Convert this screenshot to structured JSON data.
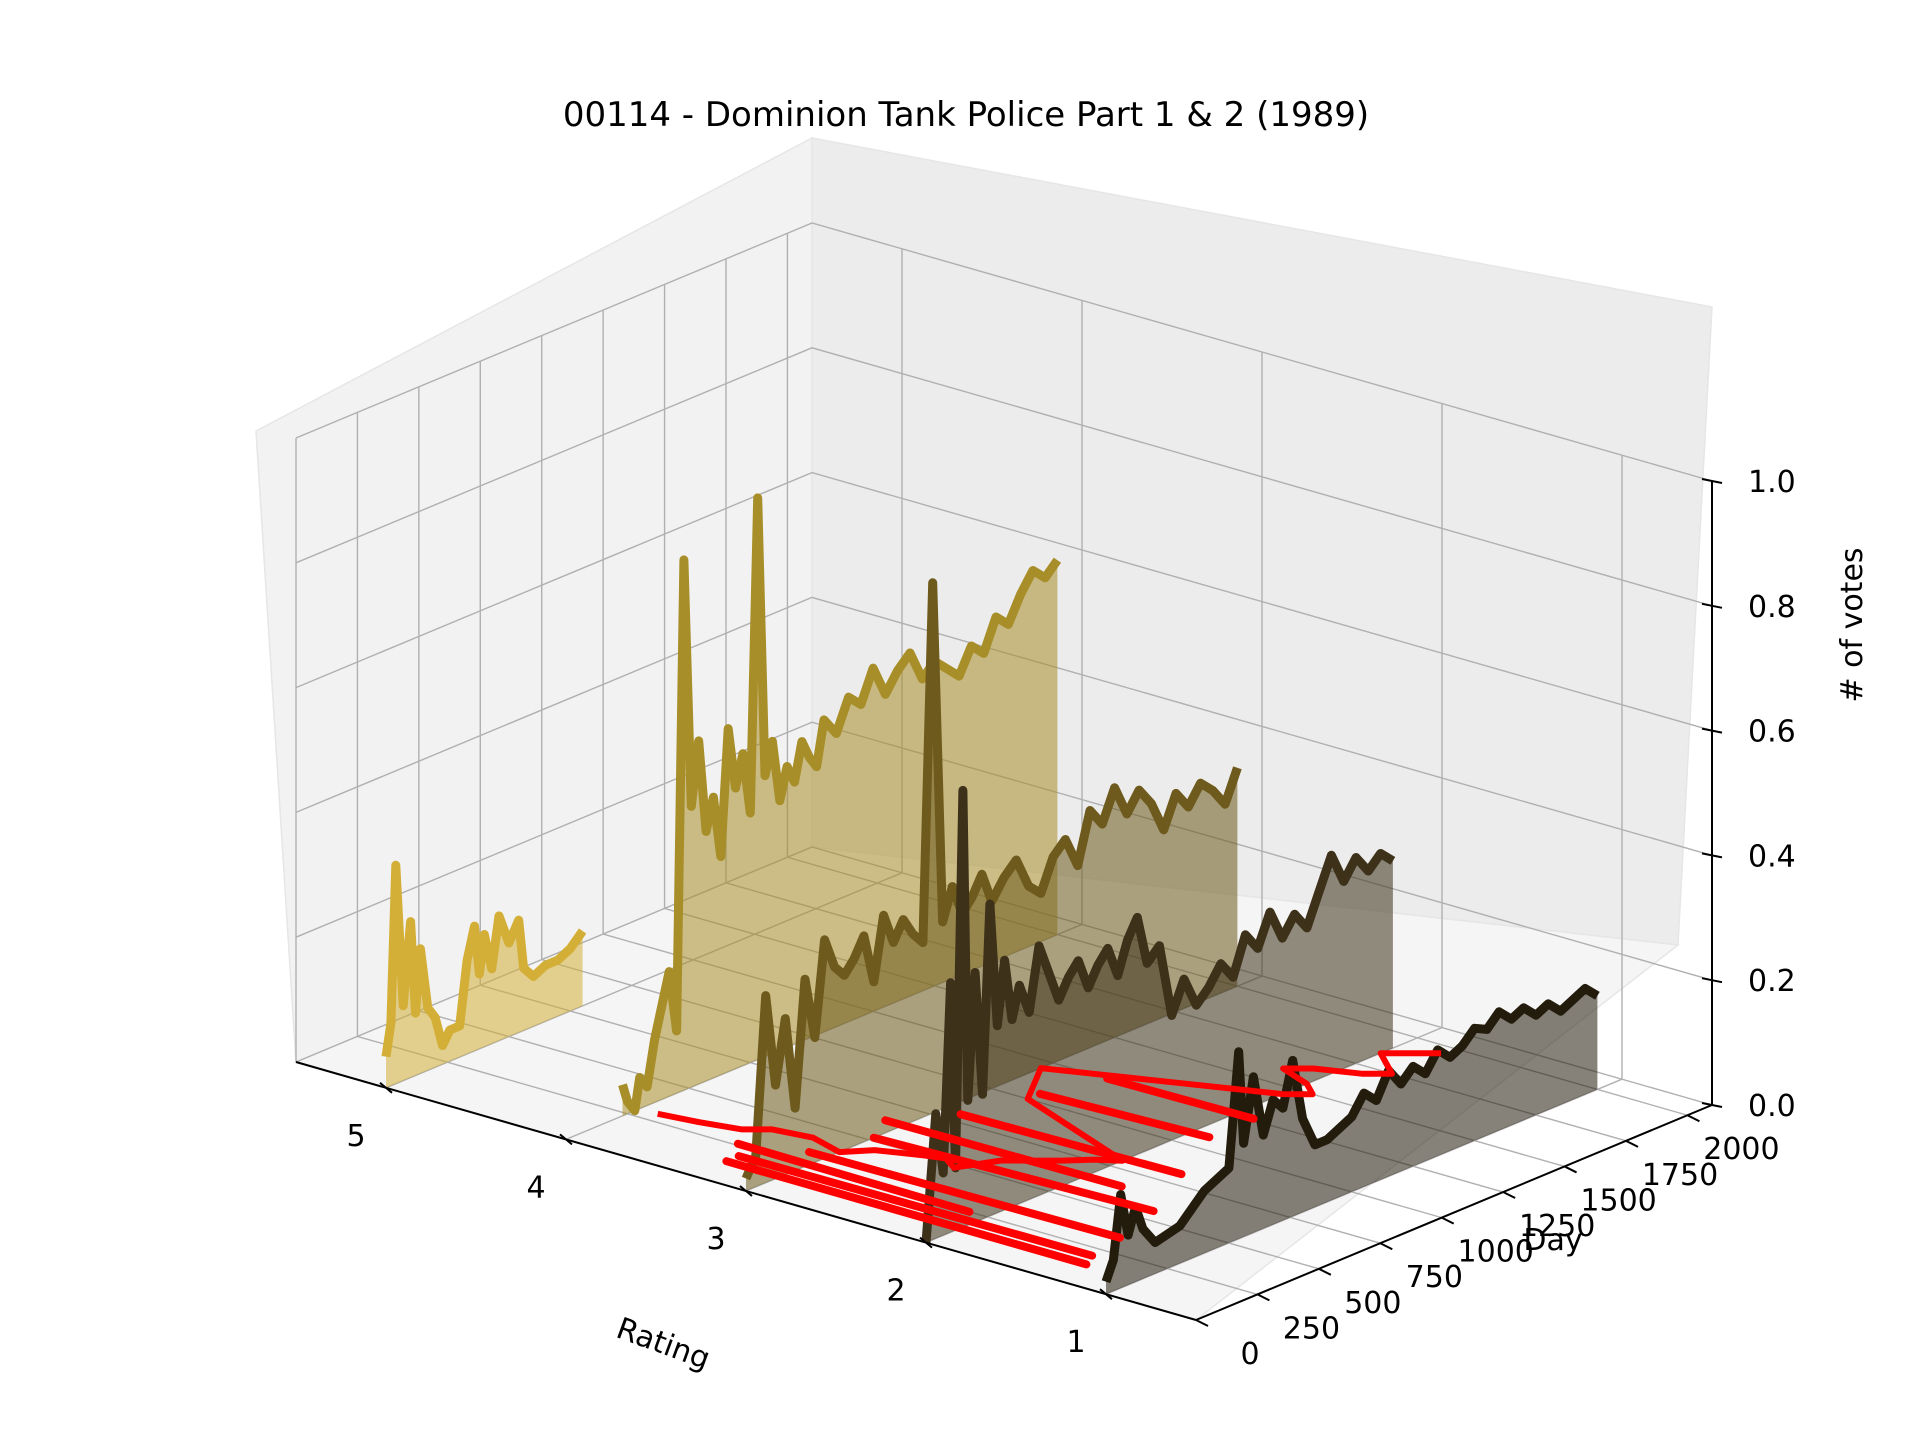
{
  "chart_data": {
    "type": "line",
    "projection": "3d",
    "title": "00114 - Dominion Tank Police Part 1 & 2 (1989)",
    "xlabel": "Rating",
    "ylabel": "Day",
    "zlabel": "# of votes",
    "x_ticks": [
      "5",
      "4",
      "3",
      "2",
      "1"
    ],
    "y_ticks": [
      "0",
      "250",
      "500",
      "750",
      "1000",
      "1250",
      "1500",
      "1750",
      "2000"
    ],
    "z_ticks": [
      "0.0",
      "0.2",
      "0.4",
      "0.6",
      "0.8",
      "1.0"
    ],
    "xlim": [
      0.5,
      5.5
    ],
    "ylim": [
      0,
      2100
    ],
    "zlim": [
      0,
      1
    ],
    "grid": true,
    "series": [
      {
        "rating": 5,
        "color": "#d4af37",
        "points": [
          [
            0,
            0.05
          ],
          [
            20,
            0.1
          ],
          [
            40,
            0.35
          ],
          [
            70,
            0.12
          ],
          [
            100,
            0.25
          ],
          [
            120,
            0.1
          ],
          [
            140,
            0.2
          ],
          [
            170,
            0.1
          ],
          [
            200,
            0.08
          ],
          [
            230,
            0.03
          ],
          [
            260,
            0.05
          ],
          [
            300,
            0.05
          ],
          [
            330,
            0.15
          ],
          [
            360,
            0.2
          ],
          [
            380,
            0.12
          ],
          [
            400,
            0.18
          ],
          [
            430,
            0.12
          ],
          [
            460,
            0.2
          ],
          [
            500,
            0.15
          ],
          [
            540,
            0.18
          ],
          [
            560,
            0.1
          ],
          [
            600,
            0.08
          ],
          [
            650,
            0.09
          ],
          [
            700,
            0.09
          ],
          [
            750,
            0.1
          ],
          [
            800,
            0.12
          ]
        ]
      },
      {
        "rating": 4,
        "color": "#a88e28",
        "points": [
          [
            230,
            0.05
          ],
          [
            250,
            0.02
          ],
          [
            280,
            0.0
          ],
          [
            300,
            0.05
          ],
          [
            330,
            0.03
          ],
          [
            360,
            0.1
          ],
          [
            390,
            0.15
          ],
          [
            420,
            0.2
          ],
          [
            450,
            0.1
          ],
          [
            480,
            0.85
          ],
          [
            510,
            0.45
          ],
          [
            540,
            0.55
          ],
          [
            570,
            0.4
          ],
          [
            600,
            0.45
          ],
          [
            630,
            0.35
          ],
          [
            660,
            0.55
          ],
          [
            690,
            0.45
          ],
          [
            720,
            0.5
          ],
          [
            750,
            0.4
          ],
          [
            780,
            0.9
          ],
          [
            810,
            0.45
          ],
          [
            840,
            0.5
          ],
          [
            870,
            0.4
          ],
          [
            900,
            0.45
          ],
          [
            930,
            0.42
          ],
          [
            960,
            0.48
          ],
          [
            990,
            0.45
          ],
          [
            1020,
            0.43
          ],
          [
            1050,
            0.5
          ],
          [
            1100,
            0.47
          ],
          [
            1150,
            0.52
          ],
          [
            1200,
            0.5
          ],
          [
            1250,
            0.55
          ],
          [
            1300,
            0.5
          ],
          [
            1350,
            0.53
          ],
          [
            1400,
            0.55
          ],
          [
            1450,
            0.5
          ],
          [
            1500,
            0.52
          ],
          [
            1550,
            0.5
          ],
          [
            1600,
            0.48
          ],
          [
            1650,
            0.52
          ],
          [
            1700,
            0.5
          ],
          [
            1750,
            0.55
          ],
          [
            1800,
            0.53
          ],
          [
            1850,
            0.57
          ],
          [
            1900,
            0.6
          ],
          [
            1950,
            0.58
          ],
          [
            2000,
            0.6
          ]
        ]
      },
      {
        "rating": 3,
        "color": "#6e5a1c",
        "points": [
          [
            0,
            0.02
          ],
          [
            40,
            0.05
          ],
          [
            80,
            0.3
          ],
          [
            120,
            0.15
          ],
          [
            160,
            0.25
          ],
          [
            200,
            0.1
          ],
          [
            240,
            0.3
          ],
          [
            280,
            0.2
          ],
          [
            320,
            0.35
          ],
          [
            360,
            0.3
          ],
          [
            400,
            0.28
          ],
          [
            440,
            0.3
          ],
          [
            480,
            0.33
          ],
          [
            520,
            0.25
          ],
          [
            560,
            0.35
          ],
          [
            600,
            0.3
          ],
          [
            640,
            0.33
          ],
          [
            680,
            0.3
          ],
          [
            720,
            0.28
          ],
          [
            760,
            0.85
          ],
          [
            800,
            0.3
          ],
          [
            840,
            0.35
          ],
          [
            880,
            0.3
          ],
          [
            920,
            0.32
          ],
          [
            960,
            0.35
          ],
          [
            1000,
            0.3
          ],
          [
            1050,
            0.33
          ],
          [
            1100,
            0.35
          ],
          [
            1150,
            0.3
          ],
          [
            1200,
            0.28
          ],
          [
            1250,
            0.33
          ],
          [
            1300,
            0.35
          ],
          [
            1350,
            0.3
          ],
          [
            1400,
            0.38
          ],
          [
            1450,
            0.35
          ],
          [
            1500,
            0.4
          ],
          [
            1550,
            0.35
          ],
          [
            1600,
            0.38
          ],
          [
            1650,
            0.35
          ],
          [
            1700,
            0.3
          ],
          [
            1750,
            0.35
          ],
          [
            1800,
            0.32
          ],
          [
            1850,
            0.35
          ],
          [
            1900,
            0.33
          ],
          [
            1950,
            0.3
          ],
          [
            2000,
            0.35
          ]
        ]
      },
      {
        "rating": 2,
        "color": "#3d311a",
        "points": [
          [
            0,
            0.0
          ],
          [
            40,
            0.2
          ],
          [
            70,
            0.1
          ],
          [
            100,
            0.4
          ],
          [
            120,
            0.1
          ],
          [
            150,
            0.7
          ],
          [
            170,
            0.2
          ],
          [
            200,
            0.4
          ],
          [
            230,
            0.2
          ],
          [
            260,
            0.5
          ],
          [
            290,
            0.3
          ],
          [
            320,
            0.4
          ],
          [
            350,
            0.3
          ],
          [
            380,
            0.35
          ],
          [
            420,
            0.3
          ],
          [
            460,
            0.4
          ],
          [
            500,
            0.35
          ],
          [
            540,
            0.3
          ],
          [
            580,
            0.33
          ],
          [
            620,
            0.35
          ],
          [
            660,
            0.3
          ],
          [
            700,
            0.33
          ],
          [
            740,
            0.35
          ],
          [
            780,
            0.3
          ],
          [
            820,
            0.35
          ],
          [
            860,
            0.38
          ],
          [
            900,
            0.3
          ],
          [
            950,
            0.32
          ],
          [
            1000,
            0.2
          ],
          [
            1050,
            0.25
          ],
          [
            1100,
            0.2
          ],
          [
            1150,
            0.22
          ],
          [
            1200,
            0.25
          ],
          [
            1250,
            0.22
          ],
          [
            1300,
            0.28
          ],
          [
            1350,
            0.25
          ],
          [
            1400,
            0.3
          ],
          [
            1450,
            0.25
          ],
          [
            1500,
            0.28
          ],
          [
            1550,
            0.25
          ],
          [
            1600,
            0.3
          ],
          [
            1650,
            0.35
          ],
          [
            1700,
            0.3
          ],
          [
            1750,
            0.33
          ],
          [
            1800,
            0.3
          ],
          [
            1850,
            0.32
          ],
          [
            1900,
            0.3
          ]
        ]
      },
      {
        "rating": 1,
        "color": "#231c0d",
        "points": [
          [
            0,
            0.02
          ],
          [
            30,
            0.05
          ],
          [
            60,
            0.15
          ],
          [
            90,
            0.08
          ],
          [
            120,
            0.12
          ],
          [
            150,
            0.08
          ],
          [
            200,
            0.05
          ],
          [
            300,
            0.06
          ],
          [
            400,
            0.1
          ],
          [
            500,
            0.12
          ],
          [
            540,
            0.3
          ],
          [
            560,
            0.15
          ],
          [
            600,
            0.25
          ],
          [
            640,
            0.15
          ],
          [
            680,
            0.2
          ],
          [
            720,
            0.18
          ],
          [
            760,
            0.25
          ],
          [
            800,
            0.15
          ],
          [
            850,
            0.1
          ],
          [
            900,
            0.1
          ],
          [
            950,
            0.11
          ],
          [
            1000,
            0.12
          ],
          [
            1050,
            0.15
          ],
          [
            1100,
            0.13
          ],
          [
            1150,
            0.17
          ],
          [
            1200,
            0.14
          ],
          [
            1250,
            0.16
          ],
          [
            1300,
            0.14
          ],
          [
            1350,
            0.17
          ],
          [
            1400,
            0.15
          ],
          [
            1450,
            0.16
          ],
          [
            1500,
            0.18
          ],
          [
            1550,
            0.17
          ],
          [
            1600,
            0.19
          ],
          [
            1650,
            0.17
          ],
          [
            1700,
            0.18
          ],
          [
            1750,
            0.16
          ],
          [
            1800,
            0.17
          ],
          [
            1850,
            0.15
          ],
          [
            1900,
            0.16
          ],
          [
            1950,
            0.17
          ],
          [
            2000,
            0.15
          ]
        ]
      }
    ],
    "red_trace": {
      "color": "#ff0000",
      "points": [
        [
          3.9,
          300
        ],
        [
          3.7,
          320
        ],
        [
          3.5,
          350
        ],
        [
          3.4,
          400
        ],
        [
          3.2,
          420
        ],
        [
          3.0,
          380
        ],
        [
          2.9,
          450
        ],
        [
          2.7,
          500
        ],
        [
          2.6,
          520
        ],
        [
          2.5,
          480
        ],
        [
          2.4,
          600
        ],
        [
          2.3,
          650
        ],
        [
          2.2,
          700
        ],
        [
          2.1,
          760
        ],
        [
          2.0,
          800
        ],
        [
          2.2,
          850
        ],
        [
          2.4,
          900
        ],
        [
          2.6,
          950
        ],
        [
          2.8,
          1000
        ],
        [
          2.9,
          1100
        ],
        [
          3.0,
          1200
        ],
        [
          2.8,
          1250
        ],
        [
          2.6,
          1300
        ],
        [
          2.4,
          1350
        ],
        [
          2.2,
          1400
        ],
        [
          2.0,
          1450
        ],
        [
          1.9,
          1500
        ],
        [
          2.0,
          1550
        ],
        [
          2.2,
          1600
        ],
        [
          2.1,
          1650
        ],
        [
          1.9,
          1700
        ],
        [
          1.8,
          1750
        ],
        [
          1.9,
          1800
        ],
        [
          2.0,
          1850
        ],
        [
          1.9,
          1900
        ],
        [
          1.8,
          1950
        ]
      ],
      "segments": [
        [
          [
            3.3,
            140
          ],
          [
            1.3,
            140
          ]
        ],
        [
          [
            3.3,
            190
          ],
          [
            1.35,
            200
          ]
        ],
        [
          [
            3.4,
            260
          ],
          [
            2.1,
            250
          ]
        ],
        [
          [
            3.1,
            330
          ],
          [
            1.4,
            350
          ]
        ],
        [
          [
            3.0,
            520
          ],
          [
            1.5,
            560
          ]
        ],
        [
          [
            3.1,
            640
          ],
          [
            1.8,
            650
          ]
        ],
        [
          [
            2.9,
            800
          ],
          [
            1.7,
            820
          ]
        ],
        [
          [
            2.8,
            1050
          ],
          [
            1.9,
            1080
          ]
        ],
        [
          [
            2.7,
            1250
          ],
          [
            1.9,
            1260
          ]
        ]
      ]
    }
  }
}
